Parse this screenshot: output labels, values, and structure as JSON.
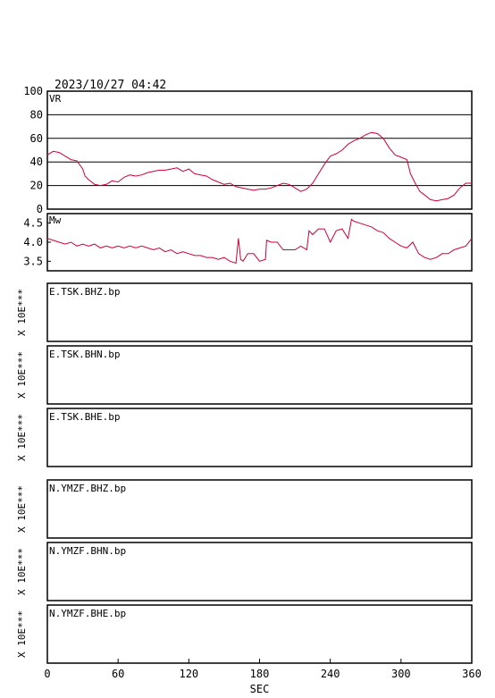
{
  "header": {
    "datetime": "2023/10/27 04:42"
  },
  "chart_data": [
    {
      "type": "line",
      "panel": "vr",
      "label": "VR",
      "ylim": [
        0,
        100
      ],
      "yticks": [
        0,
        20,
        40,
        60,
        80,
        100
      ],
      "grid": true,
      "color": "#d0003a",
      "x": [
        0,
        5,
        10,
        15,
        20,
        25,
        30,
        32,
        35,
        40,
        45,
        50,
        55,
        60,
        65,
        70,
        75,
        80,
        85,
        90,
        95,
        100,
        105,
        110,
        115,
        120,
        125,
        130,
        135,
        140,
        145,
        150,
        155,
        160,
        165,
        170,
        175,
        180,
        185,
        190,
        195,
        200,
        205,
        210,
        215,
        220,
        225,
        230,
        235,
        240,
        245,
        250,
        255,
        260,
        265,
        270,
        275,
        280,
        285,
        290,
        295,
        300,
        305,
        308,
        312,
        316,
        320,
        325,
        330,
        335,
        340,
        345,
        350,
        355,
        360
      ],
      "y": [
        46,
        49,
        48,
        45,
        42,
        41,
        34,
        28,
        25,
        21,
        20,
        21,
        24,
        23,
        27,
        29,
        28,
        29,
        31,
        32,
        33,
        33,
        34,
        35,
        32,
        34,
        30,
        29,
        28,
        25,
        23,
        21,
        22,
        19,
        18,
        17,
        16,
        17,
        17,
        18,
        20,
        22,
        21,
        18,
        15,
        17,
        22,
        30,
        38,
        45,
        47,
        50,
        55,
        58,
        60,
        63,
        65,
        64,
        60,
        52,
        46,
        44,
        42,
        30,
        22,
        15,
        12,
        8,
        7,
        8,
        9,
        12,
        18,
        22,
        22
      ]
    },
    {
      "type": "line",
      "panel": "mw",
      "label": "Mw",
      "ylim": [
        3.25,
        4.75
      ],
      "yticks": [
        3.5,
        4.0,
        4.5
      ],
      "grid": false,
      "color": "#d0003a",
      "x": [
        0,
        5,
        10,
        15,
        20,
        25,
        30,
        35,
        40,
        45,
        50,
        55,
        60,
        65,
        70,
        75,
        80,
        85,
        90,
        95,
        100,
        105,
        110,
        115,
        120,
        125,
        130,
        135,
        140,
        145,
        150,
        155,
        160,
        162,
        164,
        166,
        168,
        170,
        175,
        180,
        185,
        186,
        190,
        195,
        200,
        205,
        210,
        215,
        220,
        222,
        225,
        230,
        235,
        240,
        245,
        250,
        255,
        258,
        260,
        265,
        270,
        275,
        280,
        285,
        290,
        295,
        300,
        305,
        310,
        315,
        320,
        325,
        330,
        335,
        340,
        345,
        350,
        355,
        360
      ],
      "y": [
        4.1,
        4.05,
        4.0,
        3.95,
        4.0,
        3.9,
        3.95,
        3.9,
        3.95,
        3.85,
        3.9,
        3.85,
        3.9,
        3.85,
        3.9,
        3.85,
        3.9,
        3.85,
        3.8,
        3.85,
        3.75,
        3.8,
        3.7,
        3.75,
        3.7,
        3.65,
        3.65,
        3.6,
        3.6,
        3.55,
        3.6,
        3.5,
        3.45,
        4.1,
        3.55,
        3.5,
        3.6,
        3.7,
        3.7,
        3.5,
        3.55,
        4.05,
        4.0,
        4.0,
        3.8,
        3.8,
        3.8,
        3.9,
        3.8,
        4.3,
        4.2,
        4.35,
        4.35,
        4.0,
        4.3,
        4.35,
        4.1,
        4.6,
        4.55,
        4.5,
        4.45,
        4.4,
        4.3,
        4.25,
        4.1,
        4.0,
        3.9,
        3.85,
        4.0,
        3.7,
        3.6,
        3.55,
        3.6,
        3.7,
        3.7,
        3.8,
        3.85,
        3.9,
        4.1
      ]
    }
  ],
  "trace_panels": [
    {
      "station": "E.TSK.BHZ.bp",
      "scale": "X 10E***"
    },
    {
      "station": "E.TSK.BHN.bp",
      "scale": "X 10E***"
    },
    {
      "station": "E.TSK.BHE.bp",
      "scale": "X 10E***"
    },
    {
      "station": "N.YMZF.BHZ.bp",
      "scale": "X 10E***"
    },
    {
      "station": "N.YMZF.BHN.bp",
      "scale": "X 10E***"
    },
    {
      "station": "N.YMZF.BHE.bp",
      "scale": "X 10E***"
    }
  ],
  "x_axis": {
    "label": "SEC",
    "range": [
      0,
      360
    ],
    "ticks": [
      0,
      60,
      120,
      180,
      240,
      300,
      360
    ]
  }
}
